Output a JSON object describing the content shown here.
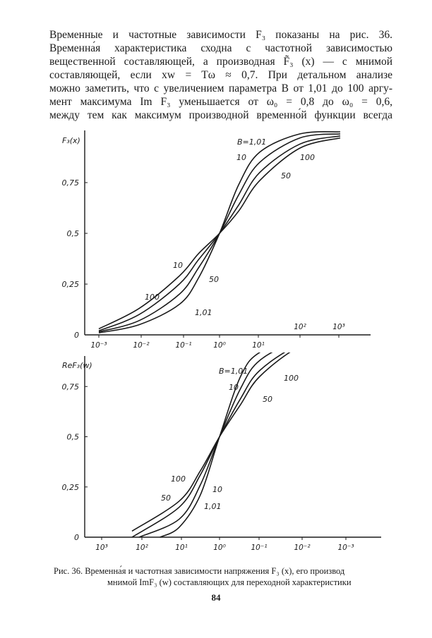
{
  "paragraph": {
    "lines": [
      "Временные и частотные зависимости F₃ показаны на рис. 36.",
      "Временна́я характеристика сходна с частотной зависимостью",
      "вещественной составляющей, а производная F̃₃ (x) — с мнимой",
      "составляющей, если xw = Tω ≈ 0,7. При детальном анализе",
      "можно заметить, что с увеличением параметра B от 1,01 до 100 аргу-",
      "мент максимума Im F₃ уменьшается от ω₀ = 0,8 до ω₀ = 0,6,",
      "между тем как максимум производной временно́й функции всегда"
    ]
  },
  "chart_data": [
    {
      "type": "line",
      "ylabel": "F₃(x)",
      "x_scale": "log",
      "x_ticks": [
        "10⁻³",
        "10⁻²",
        "10⁻¹",
        "10⁰",
        "10¹",
        "10²",
        "10³"
      ],
      "y_ticks": [
        "0",
        "0,25",
        "0,5",
        "0,75"
      ],
      "ylim": [
        0,
        1
      ],
      "series": [
        {
          "name": "1,01",
          "x": [
            0.001,
            0.01,
            0.1,
            0.3,
            1,
            3,
            10,
            100,
            1000
          ],
          "y": [
            0.01,
            0.05,
            0.15,
            0.28,
            0.5,
            0.74,
            0.9,
            0.99,
            1.0
          ]
        },
        {
          "name": "10",
          "x": [
            0.001,
            0.01,
            0.1,
            0.3,
            1,
            3,
            10,
            100,
            1000
          ],
          "y": [
            0.015,
            0.07,
            0.2,
            0.33,
            0.5,
            0.69,
            0.85,
            0.97,
            0.99
          ]
        },
        {
          "name": "50",
          "x": [
            0.001,
            0.01,
            0.1,
            0.3,
            1,
            3,
            10,
            100,
            1000
          ],
          "y": [
            0.02,
            0.1,
            0.25,
            0.37,
            0.5,
            0.64,
            0.8,
            0.94,
            0.98
          ]
        },
        {
          "name": "100",
          "x": [
            0.001,
            0.01,
            0.1,
            0.3,
            1,
            3,
            10,
            100,
            1000
          ],
          "y": [
            0.03,
            0.13,
            0.29,
            0.4,
            0.5,
            0.61,
            0.76,
            0.92,
            0.97
          ]
        }
      ],
      "annotations": [
        "B=1,01",
        "10",
        "50",
        "100",
        "10",
        "50",
        "100",
        "1,01"
      ]
    },
    {
      "type": "line",
      "ylabel": "ReF₃(w)",
      "x_scale": "log",
      "x_ticks": [
        "10³",
        "10²",
        "10¹",
        "10⁰",
        "10⁻¹",
        "10⁻²",
        "10⁻³"
      ],
      "y_ticks": [
        "0",
        "0,25",
        "0,5",
        "0,75"
      ],
      "ylim": [
        0,
        1
      ],
      "series": [
        {
          "name": "1,01",
          "x": [
            30,
            10,
            3,
            1,
            0.3,
            0.1,
            0.01,
            0.001
          ],
          "y": [
            0.0,
            0.05,
            0.21,
            0.5,
            0.8,
            0.92,
            0.99,
            1.0
          ]
        },
        {
          "name": "10",
          "x": [
            100,
            10,
            3,
            1,
            0.3,
            0.1,
            0.01,
            0.001
          ],
          "y": [
            0.0,
            0.09,
            0.26,
            0.5,
            0.74,
            0.88,
            0.98,
            1.0
          ]
        },
        {
          "name": "50",
          "x": [
            150,
            10,
            3,
            1,
            0.3,
            0.1,
            0.01,
            0.001
          ],
          "y": [
            0.0,
            0.15,
            0.31,
            0.5,
            0.69,
            0.83,
            0.96,
            1.0
          ]
        },
        {
          "name": "100",
          "x": [
            150,
            10,
            3,
            1,
            0.3,
            0.1,
            0.01,
            0.001
          ],
          "y": [
            0.03,
            0.18,
            0.33,
            0.5,
            0.66,
            0.8,
            0.95,
            1.0
          ]
        }
      ],
      "annotations": [
        "B=1,01",
        "100",
        "10",
        "50",
        "100",
        "50",
        "10",
        "1,01"
      ]
    }
  ],
  "caption": {
    "line1": "Рис. 36. Временна́я и частотная зависимости напряжения F₃ (x), его производ",
    "line2": "мнимой ImF₃ (w) составляющих для переходной характеристики"
  },
  "page_number": "84"
}
